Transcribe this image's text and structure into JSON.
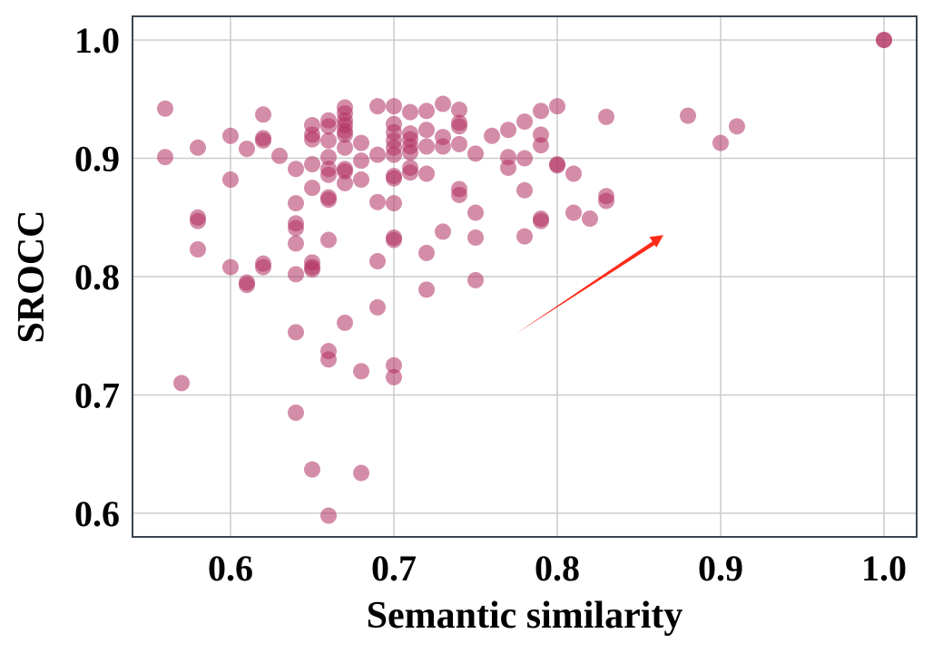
{
  "chart_data": {
    "type": "scatter",
    "title": "",
    "xlabel": "Semantic similarity",
    "ylabel": "SROCC",
    "xlim": [
      0.54,
      1.02
    ],
    "ylim": [
      0.58,
      1.02
    ],
    "xticks": [
      0.6,
      0.7,
      0.8,
      0.9,
      1.0
    ],
    "yticks": [
      0.6,
      0.7,
      0.8,
      0.9,
      1.0
    ],
    "xtick_labels": [
      "0.6",
      "0.7",
      "0.8",
      "0.9",
      "1.0"
    ],
    "ytick_labels": [
      "0.6",
      "0.7",
      "0.8",
      "0.9",
      "1.0"
    ],
    "grid": true,
    "legend": "none",
    "marker_color": "#b03060",
    "arrow_color": "#ff2a1a",
    "annotation_arrow": {
      "from": [
        0.775,
        0.752
      ],
      "to": [
        0.865,
        0.835
      ]
    },
    "points": [
      [
        0.56,
        0.942
      ],
      [
        0.56,
        0.901
      ],
      [
        0.57,
        0.71
      ],
      [
        0.58,
        0.909
      ],
      [
        0.58,
        0.85
      ],
      [
        0.58,
        0.847
      ],
      [
        0.58,
        0.823
      ],
      [
        0.6,
        0.919
      ],
      [
        0.6,
        0.882
      ],
      [
        0.6,
        0.808
      ],
      [
        0.61,
        0.908
      ],
      [
        0.61,
        0.795
      ],
      [
        0.61,
        0.793
      ],
      [
        0.62,
        0.937
      ],
      [
        0.62,
        0.917
      ],
      [
        0.62,
        0.915
      ],
      [
        0.62,
        0.811
      ],
      [
        0.62,
        0.808
      ],
      [
        0.63,
        0.902
      ],
      [
        0.64,
        0.891
      ],
      [
        0.64,
        0.862
      ],
      [
        0.64,
        0.845
      ],
      [
        0.64,
        0.841
      ],
      [
        0.64,
        0.828
      ],
      [
        0.64,
        0.802
      ],
      [
        0.64,
        0.753
      ],
      [
        0.64,
        0.685
      ],
      [
        0.65,
        0.928
      ],
      [
        0.65,
        0.92
      ],
      [
        0.65,
        0.916
      ],
      [
        0.65,
        0.895
      ],
      [
        0.65,
        0.875
      ],
      [
        0.65,
        0.812
      ],
      [
        0.65,
        0.808
      ],
      [
        0.65,
        0.806
      ],
      [
        0.65,
        0.637
      ],
      [
        0.66,
        0.932
      ],
      [
        0.66,
        0.927
      ],
      [
        0.66,
        0.915
      ],
      [
        0.66,
        0.901
      ],
      [
        0.66,
        0.891
      ],
      [
        0.66,
        0.886
      ],
      [
        0.66,
        0.867
      ],
      [
        0.66,
        0.865
      ],
      [
        0.66,
        0.831
      ],
      [
        0.66,
        0.737
      ],
      [
        0.66,
        0.73
      ],
      [
        0.66,
        0.598
      ],
      [
        0.67,
        0.943
      ],
      [
        0.67,
        0.938
      ],
      [
        0.67,
        0.932
      ],
      [
        0.67,
        0.928
      ],
      [
        0.67,
        0.923
      ],
      [
        0.67,
        0.92
      ],
      [
        0.67,
        0.909
      ],
      [
        0.67,
        0.891
      ],
      [
        0.67,
        0.889
      ],
      [
        0.67,
        0.879
      ],
      [
        0.67,
        0.761
      ],
      [
        0.68,
        0.913
      ],
      [
        0.68,
        0.898
      ],
      [
        0.68,
        0.882
      ],
      [
        0.68,
        0.72
      ],
      [
        0.68,
        0.634
      ],
      [
        0.69,
        0.944
      ],
      [
        0.69,
        0.903
      ],
      [
        0.69,
        0.863
      ],
      [
        0.69,
        0.813
      ],
      [
        0.69,
        0.774
      ],
      [
        0.7,
        0.944
      ],
      [
        0.7,
        0.929
      ],
      [
        0.7,
        0.922
      ],
      [
        0.7,
        0.915
      ],
      [
        0.7,
        0.909
      ],
      [
        0.7,
        0.903
      ],
      [
        0.7,
        0.885
      ],
      [
        0.7,
        0.883
      ],
      [
        0.7,
        0.862
      ],
      [
        0.7,
        0.833
      ],
      [
        0.7,
        0.831
      ],
      [
        0.7,
        0.725
      ],
      [
        0.7,
        0.715
      ],
      [
        0.71,
        0.939
      ],
      [
        0.71,
        0.921
      ],
      [
        0.71,
        0.916
      ],
      [
        0.71,
        0.91
      ],
      [
        0.71,
        0.905
      ],
      [
        0.71,
        0.892
      ],
      [
        0.71,
        0.888
      ],
      [
        0.72,
        0.94
      ],
      [
        0.72,
        0.924
      ],
      [
        0.72,
        0.91
      ],
      [
        0.72,
        0.887
      ],
      [
        0.72,
        0.82
      ],
      [
        0.72,
        0.789
      ],
      [
        0.73,
        0.946
      ],
      [
        0.73,
        0.918
      ],
      [
        0.73,
        0.91
      ],
      [
        0.73,
        0.838
      ],
      [
        0.74,
        0.941
      ],
      [
        0.74,
        0.93
      ],
      [
        0.74,
        0.927
      ],
      [
        0.74,
        0.912
      ],
      [
        0.74,
        0.874
      ],
      [
        0.74,
        0.869
      ],
      [
        0.75,
        0.904
      ],
      [
        0.75,
        0.854
      ],
      [
        0.75,
        0.833
      ],
      [
        0.75,
        0.797
      ],
      [
        0.76,
        0.919
      ],
      [
        0.77,
        0.924
      ],
      [
        0.77,
        0.901
      ],
      [
        0.77,
        0.892
      ],
      [
        0.78,
        0.931
      ],
      [
        0.78,
        0.9
      ],
      [
        0.78,
        0.873
      ],
      [
        0.78,
        0.834
      ],
      [
        0.79,
        0.94
      ],
      [
        0.79,
        0.92
      ],
      [
        0.79,
        0.911
      ],
      [
        0.79,
        0.849
      ],
      [
        0.79,
        0.847
      ],
      [
        0.8,
        0.944
      ],
      [
        0.8,
        0.895
      ],
      [
        0.8,
        0.894
      ],
      [
        0.81,
        0.887
      ],
      [
        0.81,
        0.854
      ],
      [
        0.82,
        0.849
      ],
      [
        0.83,
        0.935
      ],
      [
        0.83,
        0.868
      ],
      [
        0.83,
        0.864
      ],
      [
        0.88,
        0.936
      ],
      [
        0.9,
        0.913
      ],
      [
        0.91,
        0.927
      ],
      [
        1.0,
        1.0
      ],
      [
        1.0,
        1.0
      ]
    ]
  }
}
